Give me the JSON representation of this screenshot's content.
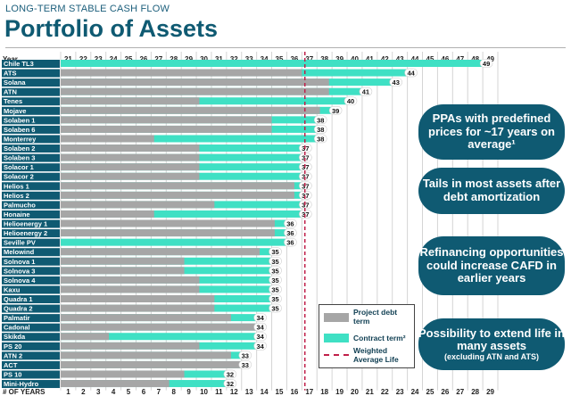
{
  "header": {
    "subtitle": "LONG-TERM STABLE CASH FLOW",
    "title": "Portfolio of Assets"
  },
  "colors": {
    "teal": "#0f5a72",
    "debt": "#a6a6a6",
    "contract": "#3fe0c4",
    "average": "#c0204a"
  },
  "chart_data": {
    "type": "bar",
    "top_axis_label": "Year",
    "top_axis_ticks": [
      21,
      22,
      23,
      24,
      25,
      26,
      27,
      28,
      29,
      30,
      31,
      32,
      33,
      34,
      35,
      36,
      37,
      38,
      39,
      40,
      41,
      42,
      43,
      44,
      45,
      46,
      47,
      48,
      49
    ],
    "bottom_axis_label": "# OF YEARS",
    "bottom_axis_ticks": [
      1,
      2,
      3,
      4,
      5,
      6,
      7,
      8,
      9,
      10,
      11,
      12,
      13,
      14,
      15,
      16,
      17,
      18,
      19,
      20,
      21,
      22,
      23,
      24,
      25,
      26,
      27,
      28,
      29
    ],
    "xlim": [
      21,
      50
    ],
    "weighted_average_life": 37.2,
    "series": [
      {
        "name": "Project debt term"
      },
      {
        "name": "Contract term²"
      },
      {
        "name": "Weighted Average Life"
      }
    ],
    "rows": [
      {
        "asset": "Chile TL3",
        "debt_end": 21,
        "contract_end": 49,
        "label": "49"
      },
      {
        "asset": "ATS",
        "debt_end": 37,
        "contract_end": 44,
        "label": "44"
      },
      {
        "asset": "Solana",
        "debt_end": 38.8,
        "contract_end": 43,
        "label": "43"
      },
      {
        "asset": "ATN",
        "debt_end": 38.8,
        "contract_end": 41,
        "label": "41"
      },
      {
        "asset": "Tenes",
        "debt_end": 30.2,
        "contract_end": 40,
        "label": "40"
      },
      {
        "asset": "Mojave",
        "debt_end": 38.2,
        "contract_end": 39,
        "label": "39"
      },
      {
        "asset": "Solaben 1",
        "debt_end": 35,
        "contract_end": 38,
        "label": "38"
      },
      {
        "asset": "Solaben 6",
        "debt_end": 35,
        "contract_end": 38,
        "label": "38"
      },
      {
        "asset": "Monterrey",
        "debt_end": 27.2,
        "contract_end": 38,
        "label": "38"
      },
      {
        "asset": "Solaben 2",
        "debt_end": 30.2,
        "contract_end": 37,
        "label": "37"
      },
      {
        "asset": "Solaben 3",
        "debt_end": 30.2,
        "contract_end": 37,
        "label": "37"
      },
      {
        "asset": "Solacor 1",
        "debt_end": 30.2,
        "contract_end": 37,
        "label": "37"
      },
      {
        "asset": "Solacor 2",
        "debt_end": 30.2,
        "contract_end": 37,
        "label": "37"
      },
      {
        "asset": "Helios 1",
        "debt_end": 36.5,
        "contract_end": 37,
        "label": "37"
      },
      {
        "asset": "Helios 2",
        "debt_end": 36.5,
        "contract_end": 37,
        "label": "37"
      },
      {
        "asset": "Palmucho",
        "debt_end": 31.2,
        "contract_end": 37,
        "label": "37"
      },
      {
        "asset": "Honaine",
        "debt_end": 27.2,
        "contract_end": 37,
        "label": "37"
      },
      {
        "asset": "Helioenergy 1",
        "debt_end": 35.2,
        "contract_end": 36,
        "label": "36"
      },
      {
        "asset": "Helioenergy 2",
        "debt_end": 35.2,
        "contract_end": 36,
        "label": "36"
      },
      {
        "asset": "Seville PV",
        "debt_end": 21,
        "contract_end": 36,
        "label": "36"
      },
      {
        "asset": "Melowind",
        "debt_end": 34.2,
        "contract_end": 35,
        "label": "35"
      },
      {
        "asset": "Solnova 1",
        "debt_end": 29.2,
        "contract_end": 35,
        "label": "35"
      },
      {
        "asset": "Solnova 3",
        "debt_end": 29.2,
        "contract_end": 35,
        "label": "35"
      },
      {
        "asset": "Solnova 4",
        "debt_end": 30.2,
        "contract_end": 35,
        "label": "35"
      },
      {
        "asset": "Kaxu",
        "debt_end": 30.2,
        "contract_end": 35,
        "label": "35"
      },
      {
        "asset": "Quadra 1",
        "debt_end": 31.2,
        "contract_end": 35,
        "label": "35"
      },
      {
        "asset": "Quadra 2",
        "debt_end": 31.2,
        "contract_end": 35,
        "label": "35"
      },
      {
        "asset": "Palmatir",
        "debt_end": 32.3,
        "contract_end": 34,
        "label": "34"
      },
      {
        "asset": "Cadonal",
        "debt_end": 34,
        "contract_end": 34,
        "label": "34"
      },
      {
        "asset": "Skikda",
        "debt_end": 24.2,
        "contract_end": 34,
        "label": "34"
      },
      {
        "asset": "PS 20",
        "debt_end": 30.2,
        "contract_end": 34,
        "label": "34"
      },
      {
        "asset": "ATN 2",
        "debt_end": 32.3,
        "contract_end": 33,
        "label": "33"
      },
      {
        "asset": "ACT",
        "debt_end": 33,
        "contract_end": 33,
        "label": "33"
      },
      {
        "asset": "PS 10",
        "debt_end": 29.2,
        "contract_end": 32,
        "label": "32"
      },
      {
        "asset": "Mini-Hydro",
        "debt_end": 28.2,
        "contract_end": 32,
        "label": "32"
      }
    ]
  },
  "legend": {
    "debt": "Project debt term",
    "contract": "Contract term²",
    "average": "Weighted Average Life"
  },
  "callouts": [
    {
      "main": "PPAs with predefined prices for ~17 years on average¹"
    },
    {
      "main": "Tails in most assets after debt amortization"
    },
    {
      "main": "Refinancing opportunities could increase CAFD in earlier years"
    },
    {
      "main": "Possibility to extend life in many assets",
      "sub": "(excluding ATN and ATS)"
    }
  ]
}
